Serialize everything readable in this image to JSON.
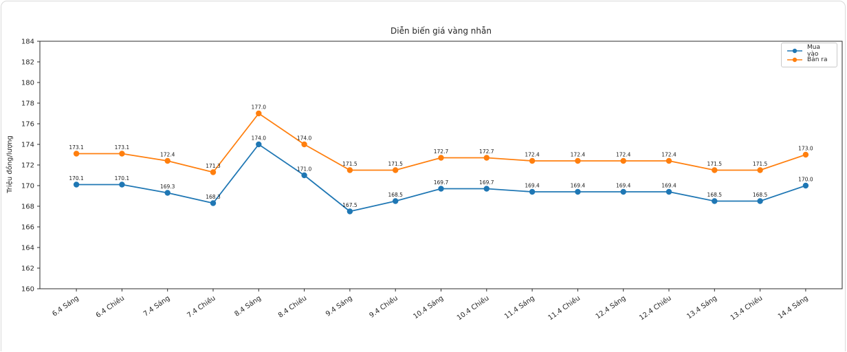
{
  "window": {
    "background": "#ffffff",
    "card_border": "#d9d9d9"
  },
  "chart_data": {
    "type": "line",
    "title": "Diễn biến giá vàng nhẫn",
    "xlabel": "",
    "ylabel": "Triệu đồng/lượng",
    "ylim": [
      160,
      184
    ],
    "yticks": [
      160,
      162,
      164,
      166,
      168,
      170,
      172,
      174,
      176,
      178,
      180,
      182,
      184
    ],
    "grid": false,
    "legend_position": "top-right",
    "point_labels": true,
    "axis_color": "#2b2b2b",
    "text_color": "#262626",
    "label_color": "#1a1a1a",
    "categories": [
      "6.4 Sáng",
      "6.4 Chiều",
      "7.4 Sáng",
      "7.4 Chiều",
      "8.4 Sáng",
      "8.4 Chiều",
      "9.4 Sáng",
      "9.4 Chiều",
      "10.4 Sáng",
      "10.4 Chiều",
      "11.4 Sáng",
      "11.4 Chiều",
      "12.4 Sáng",
      "12.4 Chiều",
      "13.4 Sáng",
      "13.4 Chiều",
      "14.4 Sáng"
    ],
    "series": [
      {
        "name": "Mua vào",
        "color": "#1f77b4",
        "values": [
          170.1,
          170.1,
          169.3,
          168.3,
          174.0,
          171.0,
          167.5,
          168.5,
          169.7,
          169.7,
          169.4,
          169.4,
          169.4,
          169.4,
          168.5,
          168.5,
          170.0
        ]
      },
      {
        "name": "Bán ra",
        "color": "#ff7f0e",
        "values": [
          173.1,
          173.1,
          172.4,
          171.3,
          177.0,
          174.0,
          171.5,
          171.5,
          172.7,
          172.7,
          172.4,
          172.4,
          172.4,
          172.4,
          171.5,
          171.5,
          173.0
        ]
      }
    ]
  }
}
